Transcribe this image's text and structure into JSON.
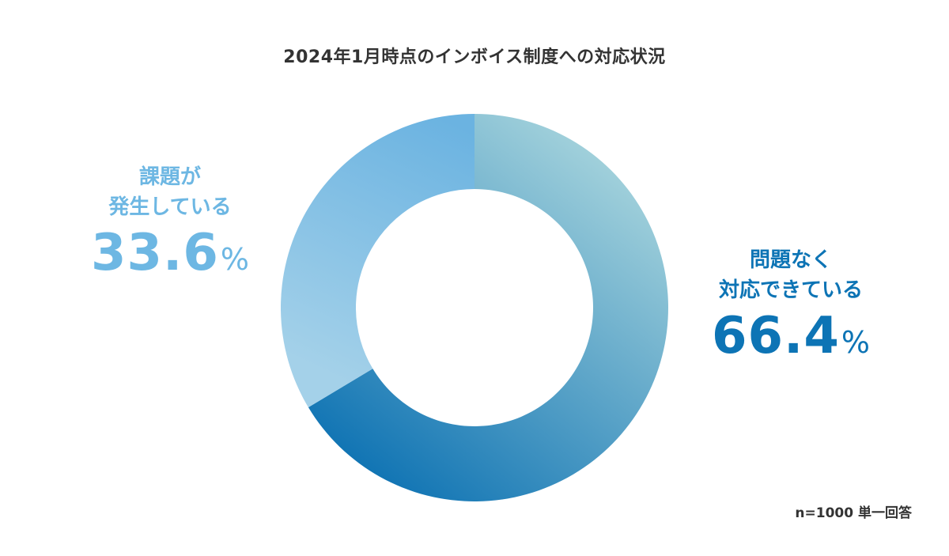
{
  "chart_data": {
    "type": "pie",
    "title": "2024年1月時点のインボイス制度への対応状況",
    "note": "n=1000 単一回答",
    "slices": [
      {
        "label_line1": "問題なく",
        "label_line2": "対応できている",
        "value": 66.4,
        "value_text": "66.4",
        "unit": "%",
        "color": "#0d74b5",
        "gradient": [
          "#0a70b2",
          "#a5d3dc"
        ]
      },
      {
        "label_line1": "課題が",
        "label_line2": "発生している",
        "value": 33.6,
        "value_text": "33.6",
        "unit": "%",
        "color": "#6db7e3",
        "gradient": [
          "#a4d1e9",
          "#6bb3e1"
        ]
      }
    ]
  }
}
